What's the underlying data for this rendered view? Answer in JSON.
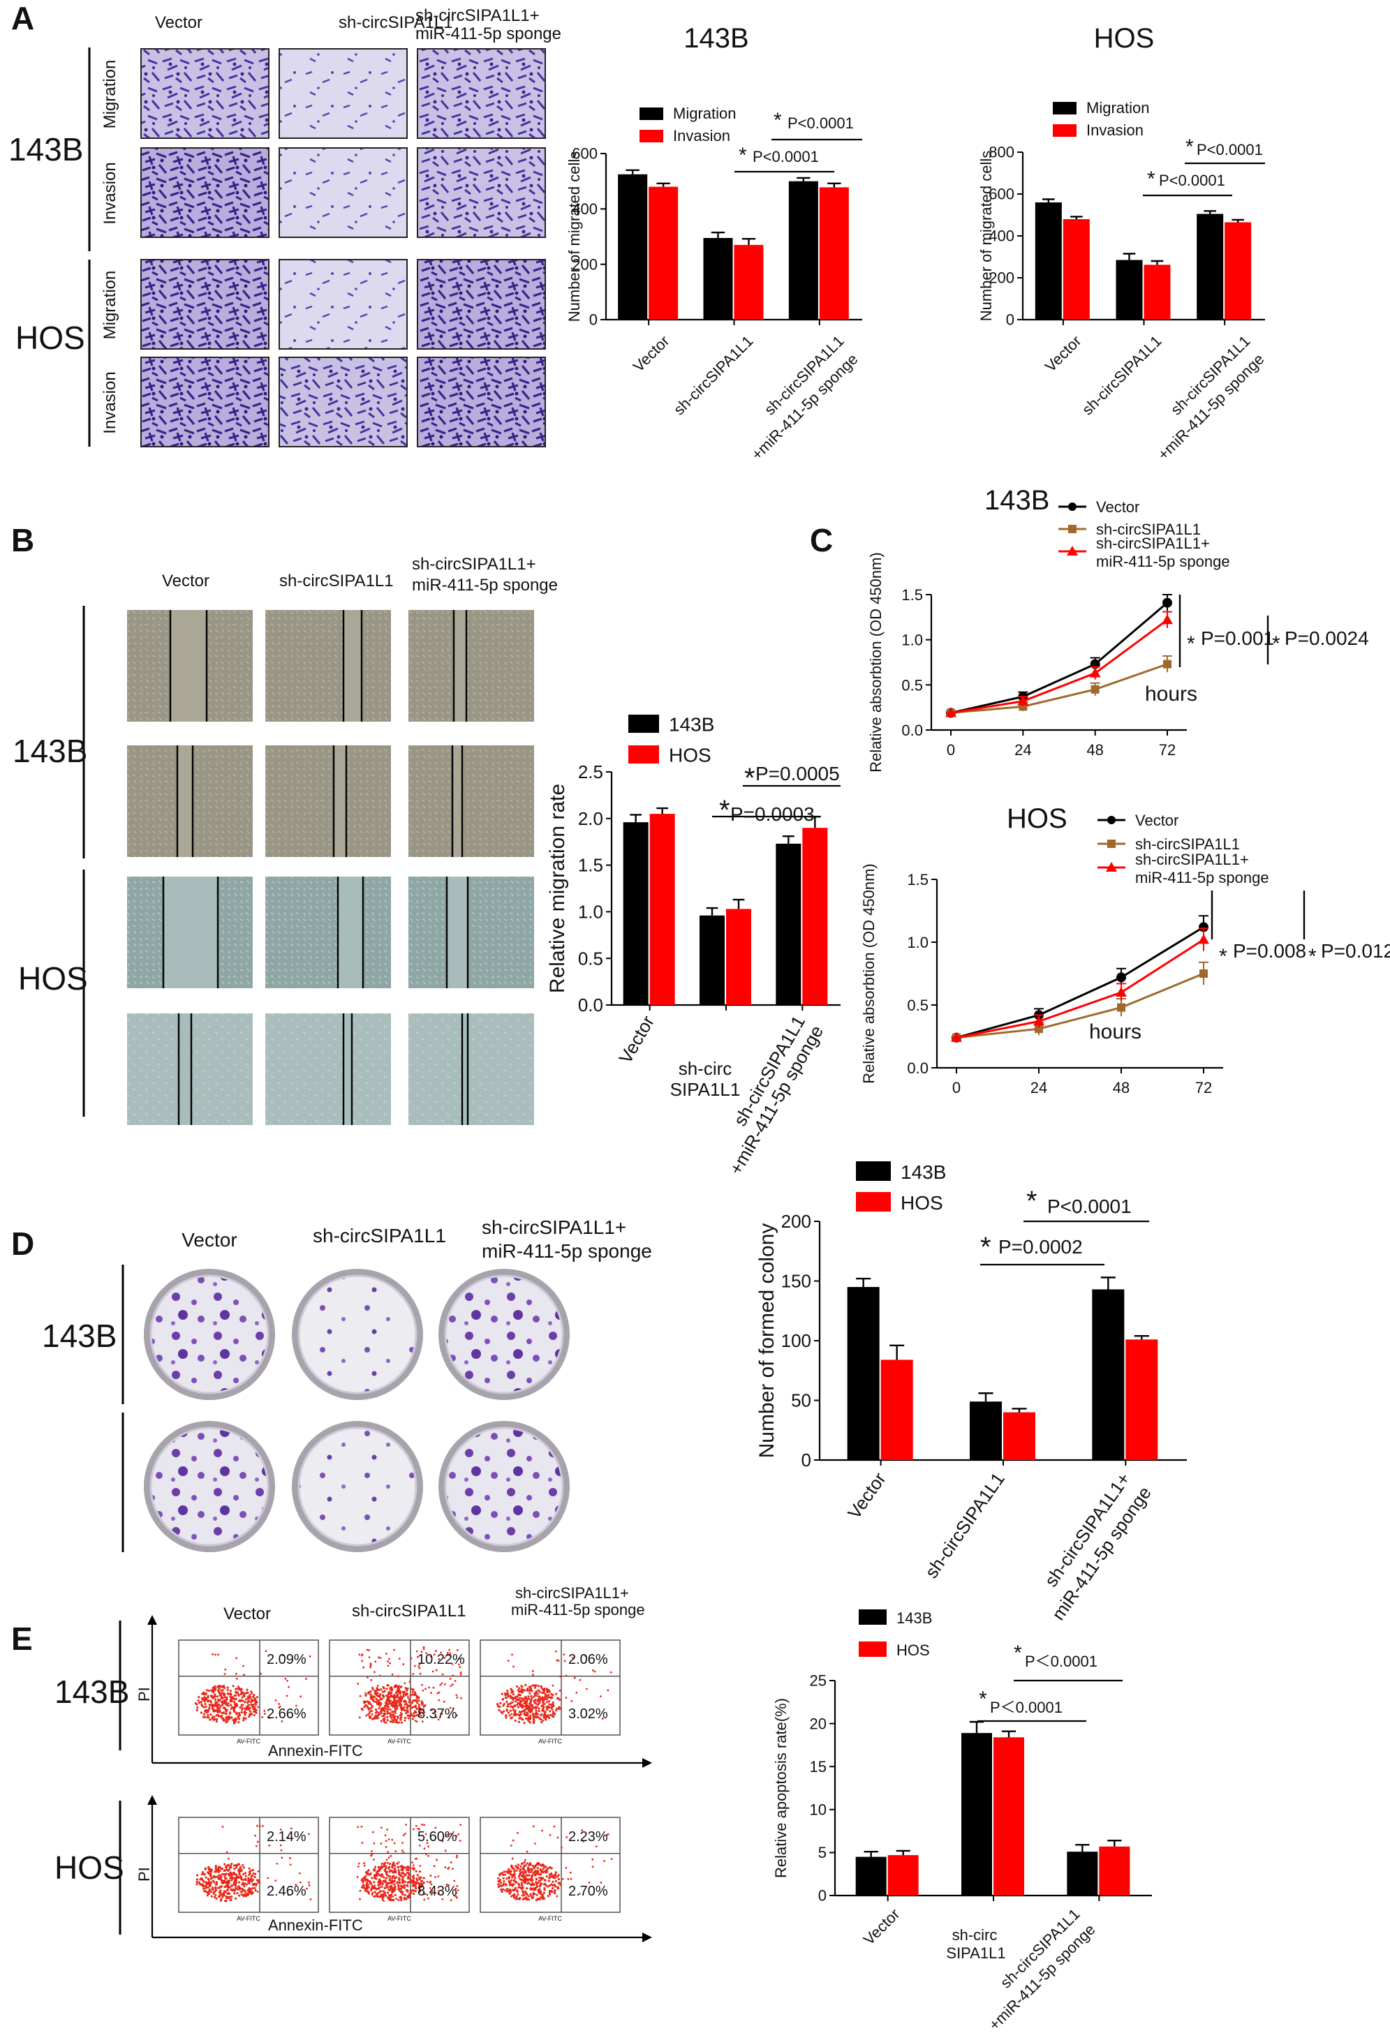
{
  "panel_letters": {
    "a": "A",
    "b": "B",
    "c": "C",
    "d": "D",
    "e": "E"
  },
  "groups": {
    "vector": "Vector",
    "sh": "sh-circSIPA1L1",
    "sh_sponge_l1": "sh-circSIPA1L1+",
    "sh_sponge_l2": "miR-411-5p sponge",
    "sh_split_l1": "sh-circ",
    "sh_split_l2": "SIPA1L1",
    "sh_sponge_plus_l1": "sh-circSIPA1L1",
    "sh_sponge_plus_l2": "+miR-411-5p sponge"
  },
  "cell_lines": {
    "c143b": "143B",
    "hos": "HOS"
  },
  "row_labels": {
    "migration": "Migration",
    "invasion": "Invasion"
  },
  "flow": {
    "pi": "PI",
    "xaxis": "Annexin-FITC",
    "mini_axis": "AV-FITC"
  },
  "colors": {
    "black": "#000000",
    "red": "#ff0000",
    "brown": "#a0692b",
    "purple": "#4a2fa0",
    "flow_dot": "#e8281a"
  },
  "chart_data": [
    {
      "id": "A-143B",
      "type": "bar",
      "title": "143B",
      "categories": [
        "Vector",
        "sh-circSIPA1L1",
        "sh-circSIPA1L1+miR-411-5p sponge"
      ],
      "series": [
        {
          "name": "Migration",
          "values": [
            525,
            295,
            500
          ],
          "errors": [
            15,
            20,
            12
          ]
        },
        {
          "name": "Invasion",
          "values": [
            480,
            270,
            478
          ],
          "errors": [
            12,
            22,
            14
          ]
        }
      ],
      "ylabel": "Number of migrated cells",
      "ylim": [
        0,
        600
      ],
      "yticks": [
        0,
        200,
        400,
        600
      ],
      "significance": [
        "P<0.0001",
        "P<0.0001"
      ]
    },
    {
      "id": "A-HOS",
      "type": "bar",
      "title": "HOS",
      "categories": [
        "Vector",
        "sh-circSIPA1L1",
        "sh-circSIPA1L1+miR-411-5p sponge"
      ],
      "series": [
        {
          "name": "Migration",
          "values": [
            560,
            285,
            505
          ],
          "errors": [
            15,
            30,
            14
          ]
        },
        {
          "name": "Invasion",
          "values": [
            480,
            262,
            465
          ],
          "errors": [
            12,
            18,
            12
          ]
        }
      ],
      "ylabel": "Number of migrated cells",
      "ylim": [
        0,
        800
      ],
      "yticks": [
        0,
        200,
        400,
        600,
        800
      ],
      "significance": [
        "P<0.0001",
        "P<0.0001"
      ]
    },
    {
      "id": "B",
      "type": "bar",
      "categories": [
        "Vector",
        "sh-circSIPA1L1",
        "sh-circSIPA1L1+miR-411-5p sponge"
      ],
      "series": [
        {
          "name": "143B",
          "values": [
            1.96,
            0.96,
            1.73
          ],
          "errors": [
            0.08,
            0.08,
            0.08
          ]
        },
        {
          "name": "HOS",
          "values": [
            2.05,
            1.03,
            1.9
          ],
          "errors": [
            0.06,
            0.1,
            0.12
          ]
        }
      ],
      "ylabel": "Relative migration rate",
      "ylim": [
        0,
        2.5
      ],
      "yticks": [
        "0.0",
        "0.5",
        "1.0",
        "1.5",
        "2.0",
        "2.5"
      ],
      "significance": [
        "P=0.0003",
        "P=0.0005"
      ]
    },
    {
      "id": "C-143B",
      "type": "line",
      "title": "143B",
      "x": [
        0,
        24,
        48,
        72
      ],
      "xlabel": "hours",
      "series": [
        {
          "name": "Vector",
          "values": [
            0.19,
            0.37,
            0.73,
            1.41
          ]
        },
        {
          "name": "sh-circSIPA1L1",
          "values": [
            0.19,
            0.26,
            0.45,
            0.73
          ]
        },
        {
          "name": "sh-circSIPA1L1+miR-411-5p sponge",
          "values": [
            0.19,
            0.32,
            0.63,
            1.22
          ]
        }
      ],
      "ylabel": "Relative absorbtion (OD 450nm)",
      "ylim": [
        0,
        1.5
      ],
      "yticks": [
        "0.0",
        "0.5",
        "1.0",
        "1.5"
      ],
      "significance": [
        "P=0.001",
        "P=0.0024"
      ]
    },
    {
      "id": "C-HOS",
      "type": "line",
      "title": "HOS",
      "x": [
        0,
        24,
        48,
        72
      ],
      "xlabel": "hours",
      "series": [
        {
          "name": "Vector",
          "values": [
            0.24,
            0.42,
            0.72,
            1.12
          ]
        },
        {
          "name": "sh-circSIPA1L1",
          "values": [
            0.24,
            0.31,
            0.48,
            0.75
          ]
        },
        {
          "name": "sh-circSIPA1L1+miR-411-5p sponge",
          "values": [
            0.24,
            0.37,
            0.6,
            1.02
          ]
        }
      ],
      "ylabel": "Relative absorbtion (OD 450nm)",
      "ylim": [
        0,
        1.5
      ],
      "yticks": [
        "0.0",
        "0.5",
        "1.0",
        "1.5"
      ],
      "significance": [
        "P=0.008",
        "P=0.012"
      ]
    },
    {
      "id": "D",
      "type": "bar",
      "categories": [
        "Vector",
        "sh-circSIPA1L1",
        "sh-circSIPA1L1+miR-411-5p sponge"
      ],
      "series": [
        {
          "name": "143B",
          "values": [
            145,
            49,
            143
          ],
          "errors": [
            7,
            7,
            10
          ]
        },
        {
          "name": "HOS",
          "values": [
            84,
            40,
            101
          ],
          "errors": [
            12,
            3,
            3
          ]
        }
      ],
      "ylabel": "Number of formed colony",
      "ylim": [
        0,
        200
      ],
      "yticks": [
        0,
        50,
        100,
        150,
        200
      ],
      "significance": [
        "P=0.0002",
        "P<0.0001"
      ]
    },
    {
      "id": "E",
      "type": "bar",
      "categories": [
        "Vector",
        "sh-circSIPA1L1",
        "sh-circSIPA1L1+miR-411-5p sponge"
      ],
      "series": [
        {
          "name": "143B",
          "values": [
            4.5,
            18.9,
            5.1
          ],
          "errors": [
            0.6,
            1.3,
            0.8
          ]
        },
        {
          "name": "HOS",
          "values": [
            4.7,
            18.4,
            5.7
          ],
          "errors": [
            0.5,
            0.7,
            0.7
          ]
        }
      ],
      "ylabel": "Relative apoptosis rate(%)",
      "ylim": [
        0,
        25
      ],
      "yticks": [
        0,
        5,
        10,
        15,
        20,
        25
      ],
      "significance": [
        "P＜0.0001",
        "P＜0.0001"
      ]
    }
  ],
  "flow_quadrants": {
    "c143b": [
      [
        "2.09%",
        "2.66%"
      ],
      [
        "10.22%",
        "8.37%"
      ],
      [
        "2.06%",
        "3.02%"
      ]
    ],
    "hos": [
      [
        "2.14%",
        "2.46%"
      ],
      [
        "5.60%",
        "8.43%"
      ],
      [
        "2.23%",
        "2.70%"
      ]
    ]
  }
}
